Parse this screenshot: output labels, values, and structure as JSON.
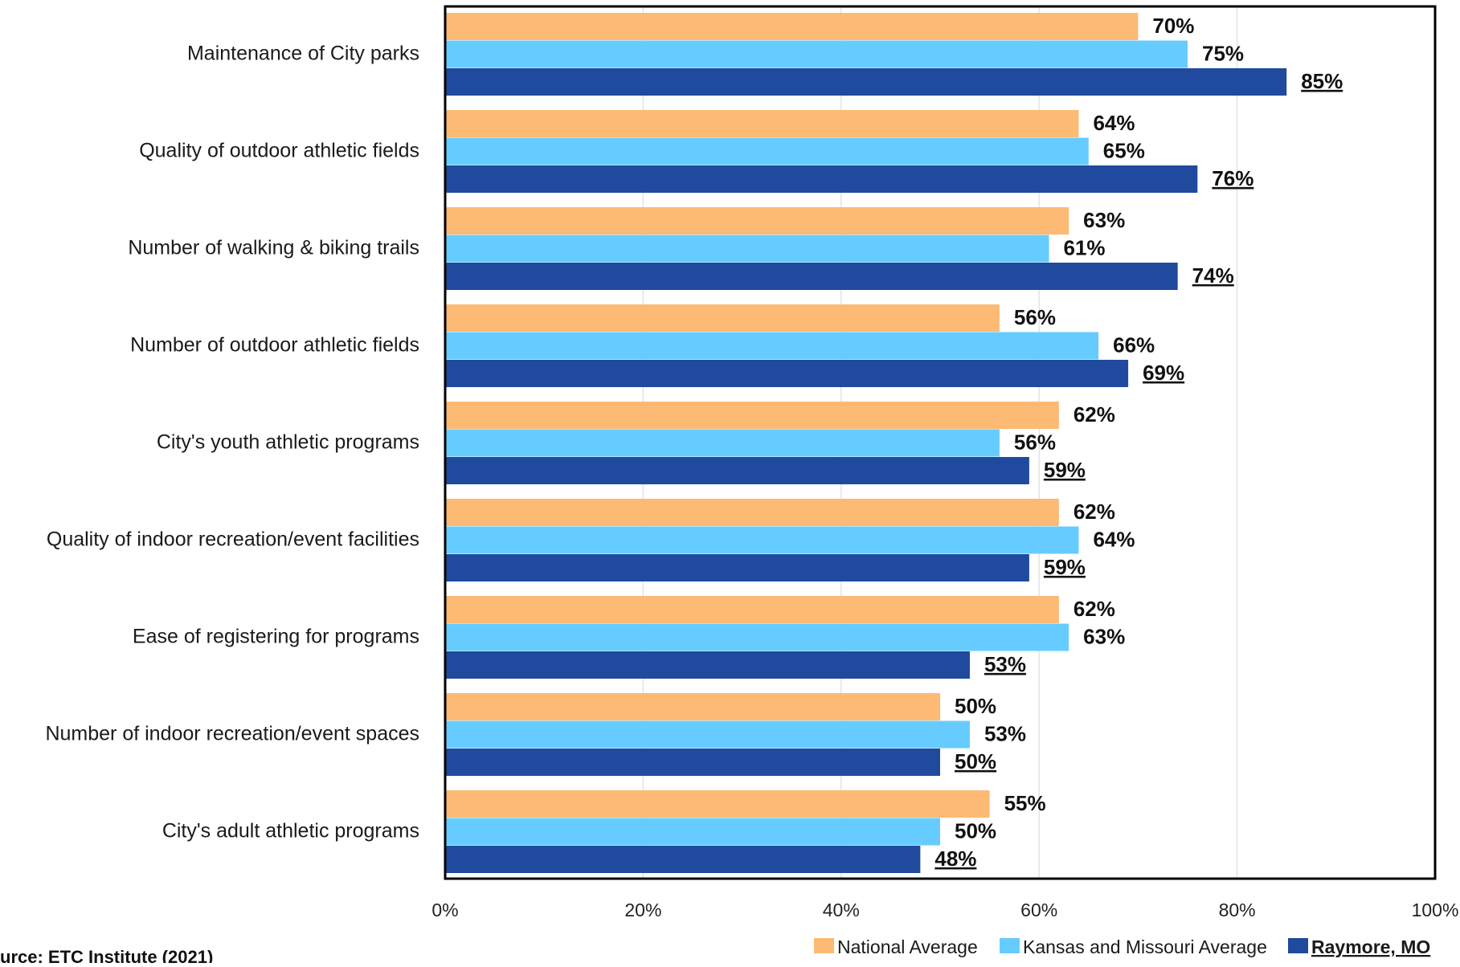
{
  "chart_data": {
    "type": "bar",
    "orientation": "horizontal",
    "categories": [
      "Maintenance of City parks",
      "Quality of outdoor athletic fields",
      "Number of walking & biking trails",
      "Number of outdoor athletic fields",
      "City's youth athletic programs",
      "Quality of indoor recreation/event facilities",
      "Ease of registering for programs",
      "Number of indoor recreation/event spaces",
      "City's adult athletic programs"
    ],
    "series": [
      {
        "name": "National Average",
        "color": "#FDBA74",
        "values": [
          70,
          64,
          63,
          56,
          62,
          62,
          62,
          50,
          55
        ],
        "labels": [
          "70%",
          "64%",
          "63%",
          "56%",
          "62%",
          "62%",
          "62%",
          "50%",
          "55%"
        ]
      },
      {
        "name": "Kansas and Missouri Average",
        "color": "#66CCFF",
        "values": [
          75,
          65,
          61,
          66,
          56,
          64,
          63,
          53,
          50
        ],
        "labels": [
          "75%",
          "65%",
          "61%",
          "66%",
          "56%",
          "64%",
          "63%",
          "53%",
          "50%"
        ]
      },
      {
        "name": "Raymore, MO",
        "color": "#1F4A9E",
        "values": [
          85,
          76,
          74,
          69,
          59,
          59,
          53,
          50,
          48
        ],
        "labels": [
          "85%",
          "76%",
          "74%",
          "69%",
          "59%",
          "59%",
          "53%",
          "50%",
          "48%"
        ],
        "emphasis": "underline"
      }
    ],
    "xlim": [
      0,
      100
    ],
    "xticks": [
      0,
      20,
      40,
      60,
      80,
      100
    ],
    "xtick_labels": [
      "0%",
      "20%",
      "40%",
      "60%",
      "80%",
      "100%"
    ],
    "grid": "vertical",
    "legend_position": "bottom-right",
    "source": "urce: ETC Institute (2021)"
  }
}
